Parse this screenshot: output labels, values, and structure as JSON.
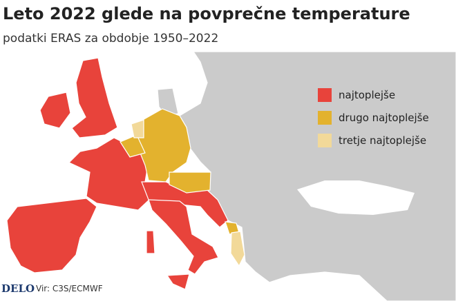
{
  "header": {
    "title": "Leto 2022 glede na povprečne temperature",
    "subtitle": "podatki ERAS za obdobje 1950–2022"
  },
  "legend": {
    "items": [
      {
        "label": "najtoplejše",
        "color": "#e8433b"
      },
      {
        "label": "drugo najtoplejše",
        "color": "#e3b22e"
      },
      {
        "label": "tretje najtoplejše",
        "color": "#f2d999"
      }
    ]
  },
  "footer": {
    "logo": "DELO",
    "source": "Vir: C3S/ECMWF"
  }
}
